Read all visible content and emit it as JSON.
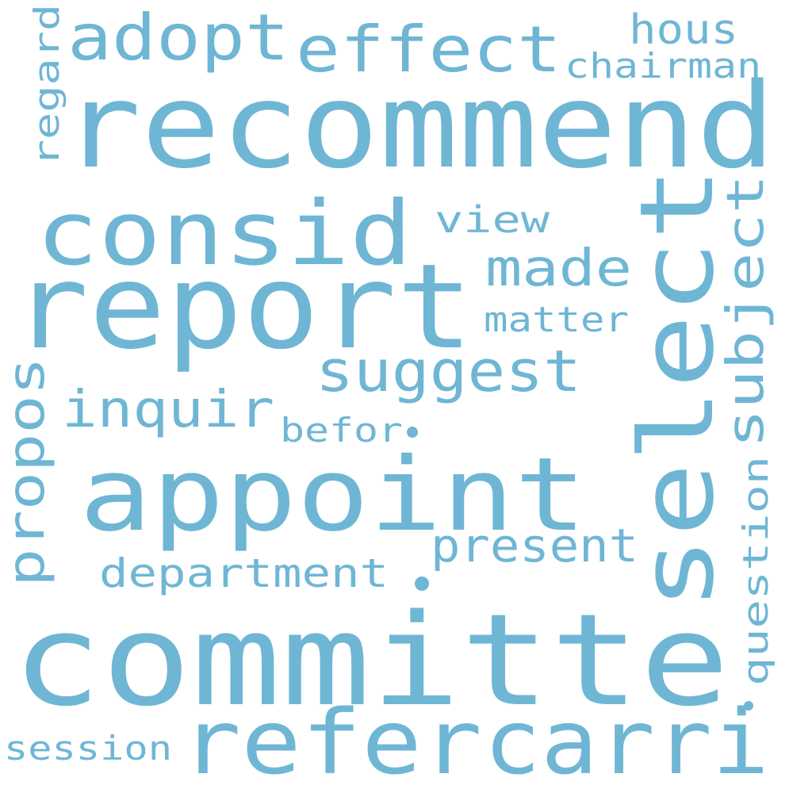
{
  "colors": {
    "word": "#6fb6d5",
    "background": "#ffffff"
  },
  "words": {
    "recommend": "recommend",
    "report": "report",
    "committe": "committe",
    "appoint": "appoint",
    "select": "select",
    "consid": "consid",
    "refer": "refer",
    "carri": "carri",
    "effect": "effect",
    "adopt": "adopt",
    "suggest": "suggest",
    "subject": "subject",
    "inquir": "inquir",
    "made": "made",
    "present": "present",
    "propos": "propos",
    "department": "department",
    "question": "question",
    "hous": "hous",
    "chairman": "chairman",
    "regard": "regard",
    "view": "view",
    "matter": "matter",
    "befor": "befor",
    "session": "session"
  }
}
